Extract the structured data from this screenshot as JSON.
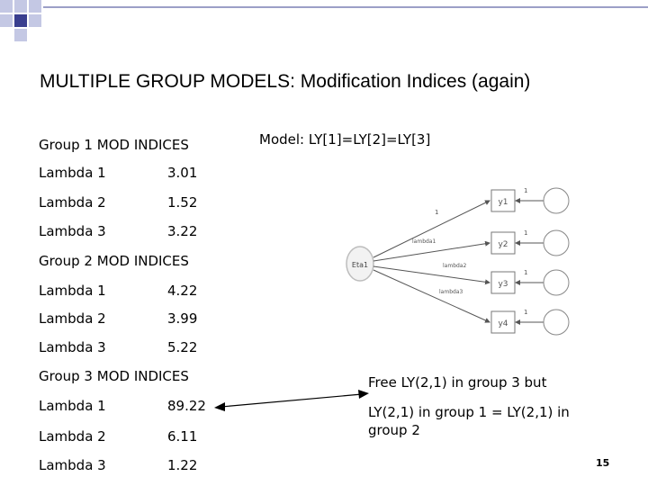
{
  "slide": {
    "title": "MULTIPLE GROUP MODELS: Modification Indices (again)",
    "model_label": "Model: LY[1]=LY[2]=LY[3]",
    "page_number": "15"
  },
  "groups": [
    {
      "header": "Group 1 MOD INDICES",
      "rows": [
        {
          "label": "Lambda 1",
          "value": "3.01"
        },
        {
          "label": "Lambda 2",
          "value": "1.52"
        },
        {
          "label": "Lambda 3",
          "value": "3.22"
        }
      ]
    },
    {
      "header": "Group 2 MOD INDICES",
      "rows": [
        {
          "label": "Lambda 1",
          "value": "4.22"
        },
        {
          "label": "Lambda 2",
          "value": "3.99"
        },
        {
          "label": "Lambda 3",
          "value": "5.22"
        }
      ]
    },
    {
      "header": "Group 3 MOD INDICES",
      "rows": [
        {
          "label": "Lambda 1",
          "value": "89.22"
        },
        {
          "label": "Lambda 2",
          "value": "6.11"
        },
        {
          "label": "Lambda 3",
          "value": "1.22"
        }
      ]
    }
  ],
  "note": {
    "line1": "Free LY(2,1) in group 3 but",
    "line2": "LY(2,1) in group 1 = LY(2,1) in",
    "line3": "group 2"
  },
  "diagram": {
    "factor": "Eta1",
    "indicators": [
      "y1",
      "y2",
      "y3",
      "y4"
    ],
    "path_labels": [
      "1",
      "lambda1",
      "lambda2",
      "lambda3"
    ],
    "error_labels": [
      "1",
      "1",
      "1",
      "1"
    ]
  },
  "colors": {
    "decor_dark": "#3a3f8f",
    "decor_light": "#c4c8e4",
    "arrow": "#000000"
  }
}
